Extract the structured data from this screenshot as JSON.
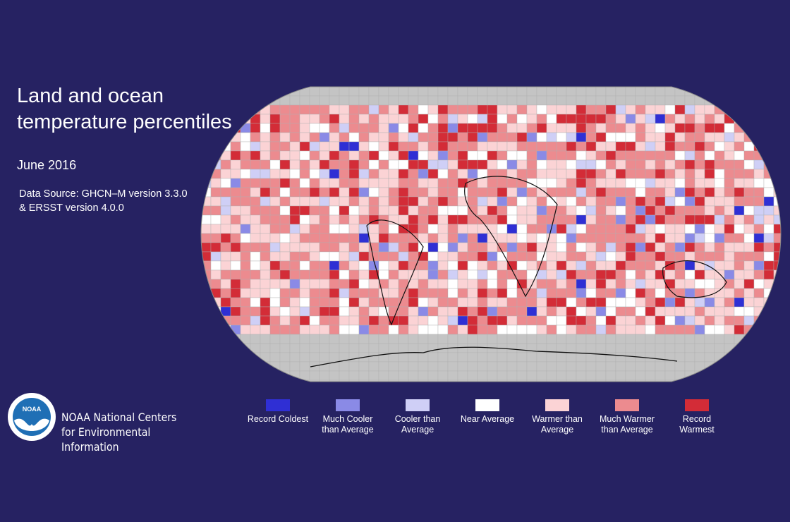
{
  "title": "Land and ocean temperature percentiles",
  "date": "June 2016",
  "source": "Data Source: GHCN–M version 3.3.0 & ERSST version 4.0.0",
  "organization": "NOAA National Centers for Environmental Information",
  "logo_text": "NOAA",
  "legend": {
    "items": [
      {
        "label": "Record Coldest",
        "color": "#2f2fd4"
      },
      {
        "label": "Much Cooler than Average",
        "color": "#8a8ae6"
      },
      {
        "label": "Cooler than Average",
        "color": "#cfcff6"
      },
      {
        "label": "Near Average",
        "color": "#ffffff"
      },
      {
        "label": "Warmer than Average",
        "color": "#fbd3d5"
      },
      {
        "label": "Much Warmer than Average",
        "color": "#ec8b8f"
      },
      {
        "label": "Record Warmest",
        "color": "#d32c37"
      }
    ]
  }
}
